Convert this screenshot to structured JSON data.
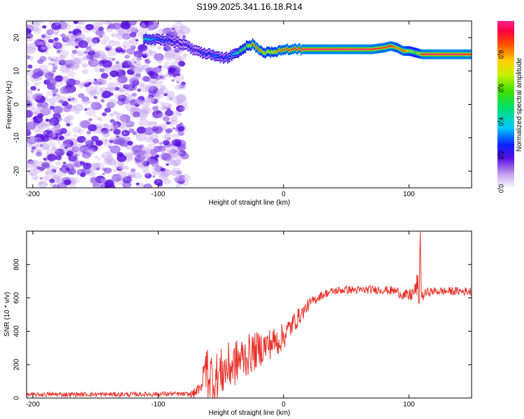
{
  "chart_data": [
    {
      "type": "heatmap",
      "title": "S199.2025.341.16.18.R14",
      "xlabel": "Height of straight line (km)",
      "ylabel": "Frequency (Hz)",
      "xlim": [
        -205,
        150
      ],
      "ylim": [
        -25,
        25
      ],
      "xticks": [
        -200,
        -100,
        0,
        100
      ],
      "yticks": [
        -20,
        -10,
        0,
        10,
        20
      ],
      "colorbar": {
        "label": "Normalized spectral amplitude",
        "range": [
          0.0,
          1.0
        ],
        "ticks": [
          "0.0",
          "0.2",
          "0.4",
          "0.6",
          "0.8"
        ],
        "tick_values": [
          0.0,
          0.2,
          0.4,
          0.6,
          0.8
        ]
      },
      "noise_region_x": [
        -205,
        -78
      ],
      "ridge": {
        "x": [
          -112,
          -100,
          -90,
          -80,
          -75,
          -70,
          -65,
          -60,
          -55,
          -50,
          -45,
          -40,
          -35,
          -30,
          -25,
          -20,
          -15,
          -10,
          -5,
          0,
          5,
          10,
          20,
          40,
          60,
          70,
          80,
          85,
          90,
          95,
          100,
          105,
          110,
          130,
          150
        ],
        "freq_hz": [
          19.5,
          19.5,
          19.0,
          18.0,
          17.0,
          16.0,
          15.5,
          15.0,
          14.5,
          14.0,
          14.0,
          15.0,
          16.0,
          17.5,
          18.0,
          16.5,
          15.5,
          15.5,
          16.0,
          16.5,
          16.5,
          16.5,
          16.5,
          16.5,
          16.5,
          16.5,
          17.0,
          17.5,
          17.0,
          16.0,
          16.0,
          15.5,
          15.0,
          15.0,
          15.0
        ],
        "amplitude": [
          0.45,
          0.3,
          0.25,
          0.2,
          0.25,
          0.2,
          0.3,
          0.25,
          0.35,
          0.25,
          0.3,
          0.4,
          0.55,
          0.6,
          0.85,
          0.9,
          0.7,
          0.75,
          0.85,
          0.88,
          0.92,
          0.95,
          0.97,
          0.98,
          0.98,
          0.95,
          0.9,
          0.95,
          0.8,
          0.9,
          0.7,
          0.6,
          0.95,
          0.98,
          0.95
        ]
      }
    },
    {
      "type": "line",
      "xlabel": "Height of straight line (km)",
      "ylabel": "SNR (10 * v/v)",
      "xlim": [
        -205,
        150
      ],
      "ylim": [
        0,
        1000
      ],
      "xticks": [
        -200,
        -100,
        0,
        100
      ],
      "yticks": [
        0,
        200,
        400,
        600,
        800
      ],
      "color": "#e8322a",
      "series": [
        {
          "name": "SNR",
          "x": [
            -205,
            -180,
            -150,
            -120,
            -90,
            -75,
            -70,
            -65,
            -62,
            -60,
            -55,
            -50,
            -45,
            -40,
            -35,
            -30,
            -25,
            -20,
            -15,
            -10,
            -5,
            0,
            5,
            10,
            15,
            20,
            25,
            30,
            35,
            40,
            50,
            60,
            70,
            80,
            90,
            95,
            100,
            105,
            107,
            108,
            109,
            110,
            112,
            115,
            120,
            130,
            140,
            150
          ],
          "y": [
            20,
            22,
            22,
            22,
            25,
            22,
            30,
            60,
            200,
            150,
            110,
            150,
            180,
            200,
            230,
            250,
            270,
            290,
            310,
            330,
            340,
            370,
            420,
            470,
            510,
            560,
            590,
            615,
            630,
            640,
            650,
            645,
            650,
            648,
            640,
            620,
            610,
            640,
            700,
            480,
            1000,
            600,
            620,
            635,
            640,
            640,
            640,
            640
          ],
          "noise_amplitude": [
            12,
            14,
            14,
            14,
            14,
            14,
            35,
            120,
            180,
            170,
            160,
            150,
            150,
            140,
            140,
            130,
            120,
            110,
            100,
            95,
            90,
            80,
            70,
            60,
            45,
            35,
            30,
            25,
            25,
            25,
            25,
            25,
            25,
            25,
            30,
            30,
            40,
            50,
            80,
            60,
            30,
            30,
            30,
            25,
            25,
            25,
            25,
            25
          ]
        }
      ]
    }
  ]
}
